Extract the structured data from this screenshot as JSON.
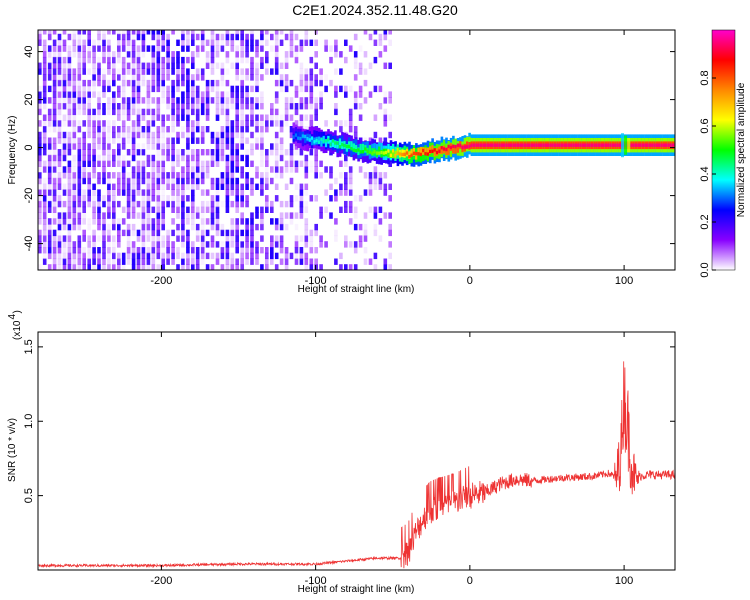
{
  "title": "C2E1.2024.352.11.48.G20",
  "chart_data": [
    {
      "type": "heatmap",
      "xlabel": "Height of straight line (km)",
      "ylabel": "Frequency (Hz)",
      "xlim": [
        -280,
        133
      ],
      "ylim": [
        -51,
        49
      ],
      "xticks": [
        -200,
        -100,
        0,
        100
      ],
      "yticks": [
        -40,
        -20,
        0,
        20,
        40
      ],
      "colorbar": {
        "label": "Normalized spectral amplitude",
        "range": [
          0,
          1
        ],
        "ticks": [
          "0.0",
          "0.2",
          "0.4",
          "0.6",
          "0.8"
        ],
        "colormap": [
          "#ffffff",
          "#8800ff",
          "#0000ff",
          "#00ffff",
          "#00ff00",
          "#ffff00",
          "#ff8800",
          "#ff0000",
          "#ff00cc"
        ]
      },
      "ridge": {
        "description_values": [
          {
            "x": -115,
            "y": 5,
            "amplitude": 0.3
          },
          {
            "x": -90,
            "y": 2,
            "amplitude": 0.45
          },
          {
            "x": -70,
            "y": -1,
            "amplitude": 0.5
          },
          {
            "x": -55,
            "y": -2,
            "amplitude": 0.6
          },
          {
            "x": -40,
            "y": -3,
            "amplitude": 0.8
          },
          {
            "x": -20,
            "y": -1,
            "amplitude": 0.9
          },
          {
            "x": 0,
            "y": 1,
            "amplitude": 0.95
          },
          {
            "x": 50,
            "y": 1,
            "amplitude": 0.95
          },
          {
            "x": 100,
            "y": 1,
            "amplitude": 0.95
          },
          {
            "x": 133,
            "y": 1,
            "amplitude": 0.95
          }
        ]
      }
    },
    {
      "type": "line",
      "xlabel": "Height of straight line (km)",
      "ylabel": "SNR (10 * v/v)",
      "yscale_label": "(x10",
      "yscale_exponent": "4",
      "xlim": [
        -280,
        133
      ],
      "ylim": [
        0,
        1.6
      ],
      "xticks": [
        -200,
        -100,
        0,
        100
      ],
      "yticks": [
        0.5,
        1.0,
        1.5
      ],
      "color": "#ee3333",
      "series": [
        {
          "x": [
            -280,
            -250,
            -200,
            -150,
            -120,
            -100,
            -80,
            -60,
            -45,
            -40,
            -35,
            -30,
            -25,
            -20,
            -10,
            0,
            10,
            20,
            30,
            40,
            60,
            80,
            90,
            95,
            98,
            100,
            102,
            105,
            108,
            110,
            115,
            120,
            133
          ],
          "y": [
            0.03,
            0.03,
            0.03,
            0.04,
            0.04,
            0.04,
            0.06,
            0.08,
            0.08,
            0.12,
            0.25,
            0.35,
            0.4,
            0.42,
            0.45,
            0.5,
            0.52,
            0.58,
            0.61,
            0.6,
            0.62,
            0.63,
            0.65,
            0.62,
            0.8,
            1.2,
            1.0,
            0.7,
            0.6,
            0.63,
            0.64,
            0.64,
            0.64
          ]
        }
      ]
    }
  ]
}
